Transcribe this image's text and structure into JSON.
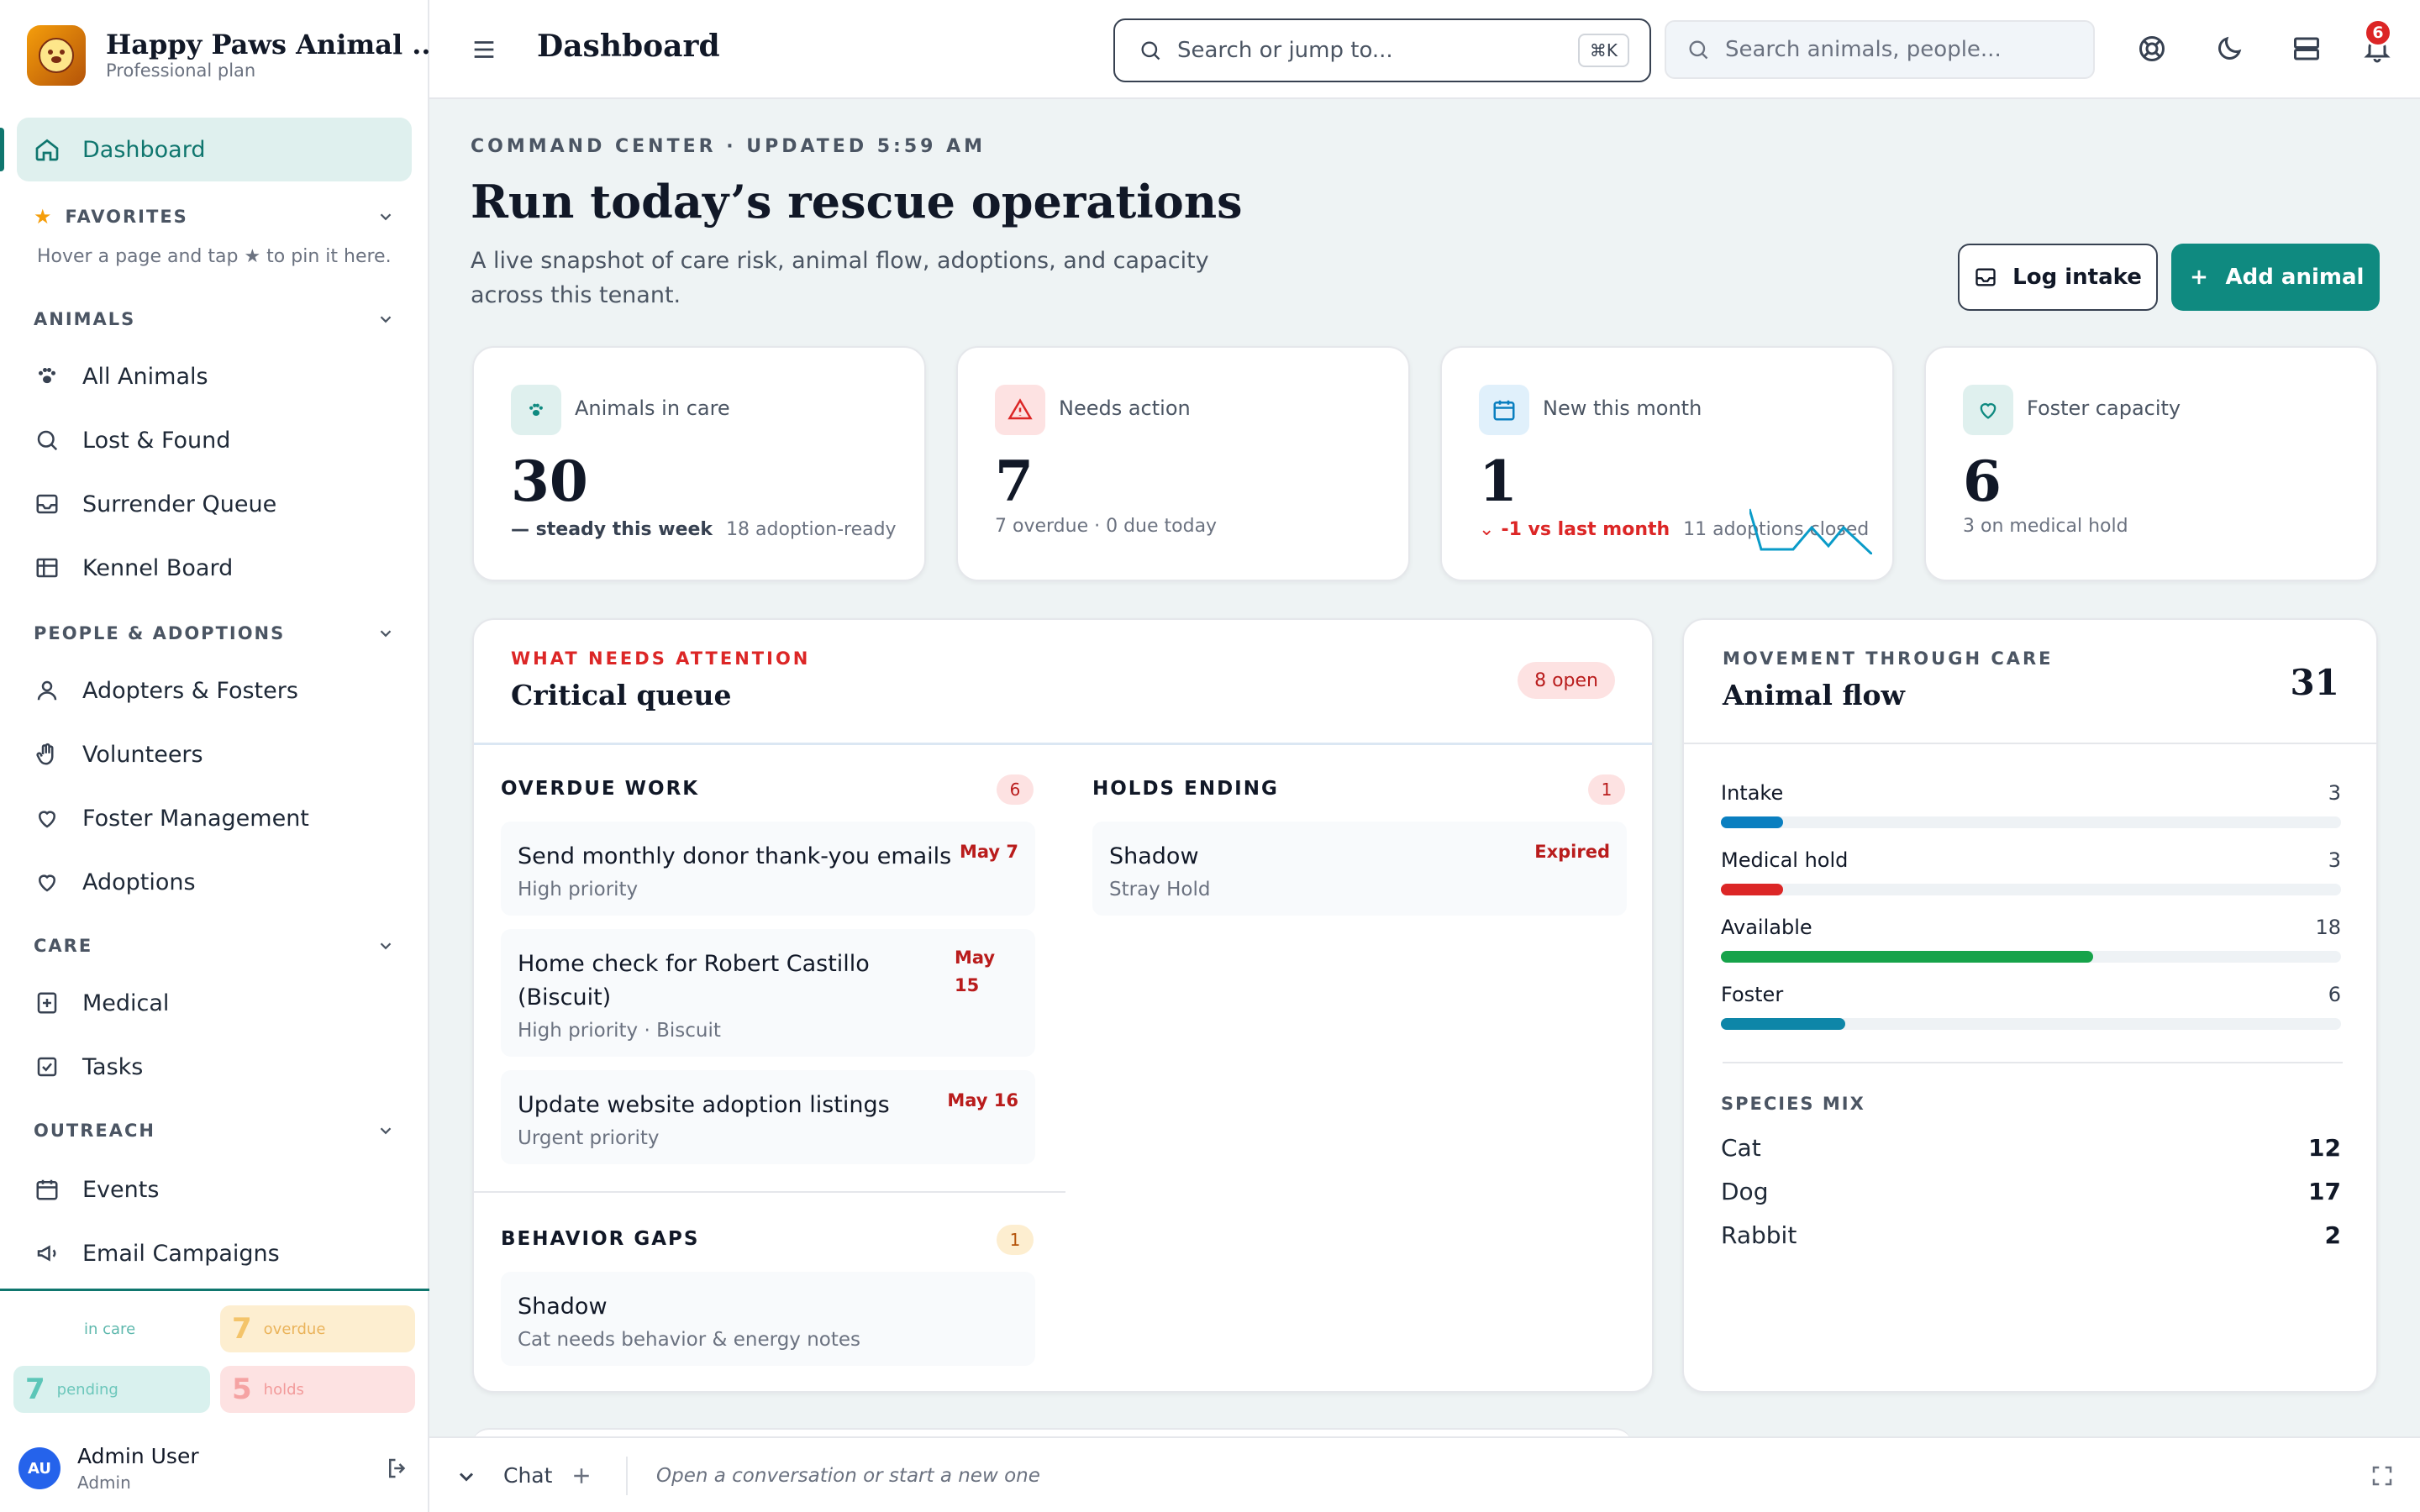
{
  "sidebar": {
    "org_name": "Happy Paws Animal ...",
    "plan": "Professional plan",
    "dashboard_label": "Dashboard",
    "favorites_label": "FAVORITES",
    "favorites_hint": "Hover a page and tap ★ to pin it here.",
    "sections": {
      "animals": "ANIMALS",
      "people": "PEOPLE & ADOPTIONS",
      "care": "CARE",
      "outreach": "OUTREACH"
    },
    "items": {
      "all_animals": "All Animals",
      "lost_found": "Lost & Found",
      "surrender_queue": "Surrender Queue",
      "kennel_board": "Kennel Board",
      "adopters_fosters": "Adopters & Fosters",
      "volunteers": "Volunteers",
      "foster_management": "Foster Management",
      "adoptions": "Adoptions",
      "medical": "Medical",
      "tasks": "Tasks",
      "events": "Events",
      "email_campaigns": "Email Campaigns"
    },
    "tiles": [
      {
        "num": "",
        "label": "in care"
      },
      {
        "num": "7",
        "label": "overdue"
      },
      {
        "num": "7",
        "label": "pending"
      },
      {
        "num": "5",
        "label": "holds"
      }
    ],
    "user": {
      "initials": "AU",
      "name": "Admin User",
      "role": "Admin"
    }
  },
  "header": {
    "title": "Dashboard",
    "command_placeholder": "Search or jump to...",
    "shortcut": "⌘K",
    "search_placeholder": "Search animals, people...",
    "notifications_count": "6"
  },
  "main": {
    "eyebrow": "COMMAND CENTER · UPDATED 5:59 AM",
    "title": "Run today’s rescue operations",
    "subtitle": "A live snapshot of care risk, animal flow, adoptions, and capacity across this tenant.",
    "log_intake": "Log intake",
    "add_animal": "Add animal",
    "stats": [
      {
        "label": "Animals in care",
        "value": "30",
        "trend": "— steady this week",
        "note": "18 adoption-ready"
      },
      {
        "label": "Needs action",
        "value": "7",
        "note": "7 overdue · 0 due today"
      },
      {
        "label": "New this month",
        "value": "1",
        "trend": "-1 vs last month",
        "note": "11 adoptions closed"
      },
      {
        "label": "Foster capacity",
        "value": "6",
        "note": "3 on medical hold"
      }
    ],
    "critical": {
      "eyebrow": "WHAT NEEDS ATTENTION",
      "title": "Critical queue",
      "open_count": "8 open",
      "overdue": {
        "label": "OVERDUE WORK",
        "count": "6",
        "items": [
          {
            "title": "Send monthly donor thank-you emails",
            "sub": "High priority",
            "date": "May 7"
          },
          {
            "title_l1": "Home check for Robert Castillo",
            "title_l2": "(Biscuit)",
            "sub": "High priority · Biscuit",
            "date_l1": "May",
            "date_l2": "15"
          },
          {
            "title": "Update website adoption listings",
            "sub": "Urgent priority",
            "date": "May 16"
          }
        ]
      },
      "holds": {
        "label": "HOLDS ENDING",
        "count": "1",
        "items": [
          {
            "title": "Shadow",
            "sub": "Stray Hold",
            "date": "Expired"
          }
        ]
      },
      "behavior": {
        "label": "BEHAVIOR GAPS",
        "count": "1",
        "items": [
          {
            "title": "Shadow",
            "sub": "Cat needs behavior & energy notes"
          }
        ]
      }
    },
    "flow": {
      "eyebrow": "MOVEMENT THROUGH CARE",
      "title": "Animal flow",
      "total": "31",
      "rows": [
        {
          "label": "Intake",
          "value": "3",
          "fraction": 0.1,
          "color": "#0a7fc0"
        },
        {
          "label": "Medical hold",
          "value": "3",
          "fraction": 0.1,
          "color": "#dc2626"
        },
        {
          "label": "Available",
          "value": "18",
          "fraction": 0.6,
          "color": "#16a34a"
        },
        {
          "label": "Foster",
          "value": "6",
          "fraction": 0.2,
          "color": "#0e86a8"
        }
      ],
      "species_label": "SPECIES MIX",
      "species": [
        {
          "name": "Cat",
          "count": "12"
        },
        {
          "name": "Dog",
          "count": "17"
        },
        {
          "name": "Rabbit",
          "count": "2"
        }
      ]
    }
  },
  "chat": {
    "label": "Chat",
    "placeholder": "Open a conversation or start a new one"
  },
  "colors": {
    "brand": "#0f8a80",
    "danger": "#dc2626",
    "accent_bg": "#dff0ee"
  }
}
